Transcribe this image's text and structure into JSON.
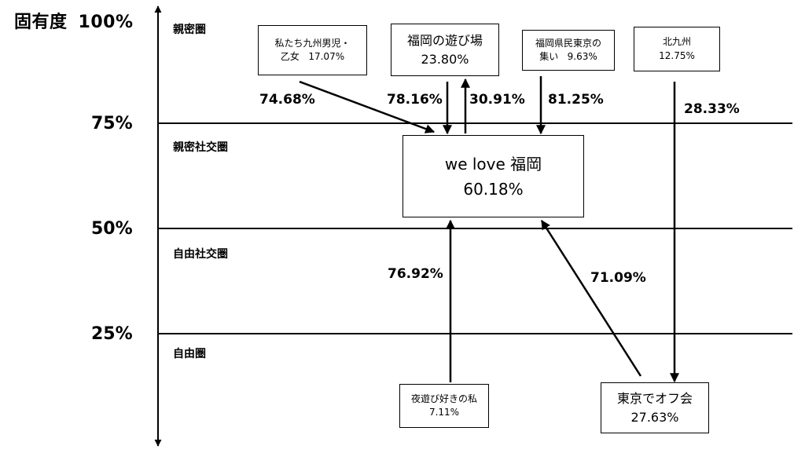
{
  "axis": {
    "title": "固有度",
    "ticks": [
      "100%",
      "75%",
      "50%",
      "25%"
    ]
  },
  "zones": [
    "親密圏",
    "親密社交圏",
    "自由社交圏",
    "自由圏"
  ],
  "nodes": {
    "center": {
      "name": "we love 福岡",
      "value": "60.18%"
    },
    "kyushu_men": {
      "name_line1": "私たち九州男児・",
      "name_line2": "乙女",
      "value": "17.07%"
    },
    "fukuoka_play": {
      "name": "福岡の遊び場",
      "value": "23.80%"
    },
    "kenmin": {
      "name_line1": "福岡県民東京の",
      "name_line2": "集い",
      "value": "9.63%"
    },
    "kitakyushu": {
      "name": "北九州",
      "value": "12.75%"
    },
    "night_play": {
      "name": "夜遊び好きの私",
      "value": "7.11%"
    },
    "tokyo_off": {
      "name": "東京でオフ会",
      "value": "27.63%"
    }
  },
  "edges": {
    "kyushu_to_center": "74.68%",
    "play_to_center": "78.16%",
    "center_to_play": "30.91%",
    "kenmin_to_center": "81.25%",
    "kitakyushu_to_tokyo": "28.33%",
    "night_to_center": "76.92%",
    "tokyo_to_center": "71.09%"
  }
}
